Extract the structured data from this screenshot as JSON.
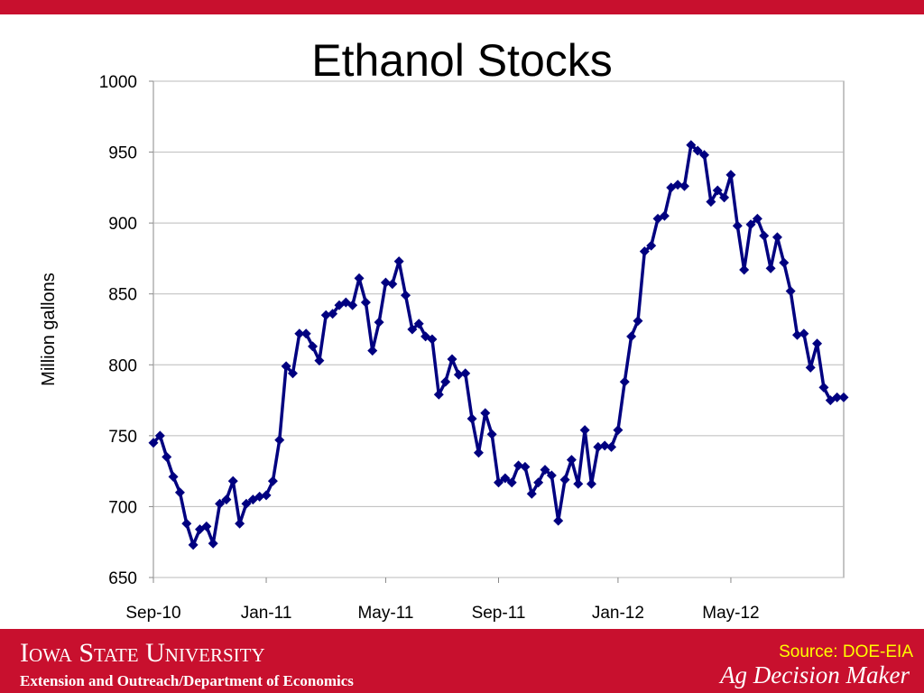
{
  "chart_data": {
    "type": "line",
    "title": "Ethanol Stocks",
    "y_label": "Million gallons",
    "categories": [
      "Sep-10",
      null,
      null,
      null,
      null,
      null,
      null,
      null,
      null,
      null,
      null,
      null,
      null,
      null,
      null,
      null,
      null,
      "Jan-11",
      null,
      null,
      null,
      null,
      null,
      null,
      null,
      null,
      null,
      null,
      null,
      null,
      null,
      null,
      null,
      null,
      null,
      "May-11",
      null,
      null,
      null,
      null,
      null,
      null,
      null,
      null,
      null,
      null,
      null,
      null,
      null,
      null,
      null,
      null,
      "Sep-11",
      null,
      null,
      null,
      null,
      null,
      null,
      null,
      null,
      null,
      null,
      null,
      null,
      null,
      null,
      null,
      null,
      null,
      "Jan-12",
      null,
      null,
      null,
      null,
      null,
      null,
      null,
      null,
      null,
      null,
      null,
      null,
      null,
      null,
      null,
      null,
      "May-12",
      null,
      null,
      null,
      null,
      null,
      null,
      null,
      null,
      null,
      null,
      null,
      null,
      null,
      null,
      null,
      null,
      null
    ],
    "values": [
      745,
      750,
      735,
      721,
      710,
      688,
      673,
      684,
      686,
      674,
      702,
      705,
      718,
      688,
      702,
      705,
      707,
      708,
      718,
      747,
      799,
      794,
      822,
      822,
      813,
      803,
      835,
      836,
      842,
      844,
      842,
      861,
      844,
      810,
      830,
      858,
      857,
      873,
      849,
      825,
      829,
      820,
      818,
      779,
      788,
      804,
      793,
      794,
      762,
      738,
      766,
      751,
      717,
      720,
      717,
      729,
      728,
      709,
      717,
      726,
      722,
      690,
      719,
      733,
      716,
      754,
      716,
      742,
      743,
      742,
      754,
      788,
      820,
      831,
      880,
      884,
      903,
      905,
      925,
      927,
      926,
      955,
      951,
      948,
      915,
      923,
      918,
      934,
      898,
      867,
      899,
      903,
      891,
      868,
      890,
      872,
      852,
      821,
      822,
      798,
      815,
      784,
      775,
      777,
      777
    ],
    "color": "#000080",
    "ylim": [
      650,
      1000
    ],
    "yticks": [
      650,
      700,
      750,
      800,
      850,
      900,
      950,
      1000
    ],
    "grid": true
  },
  "footer": {
    "university": "Iowa State University",
    "department": "Extension and Outreach/Department of Economics",
    "source": "Source: DOE-EIA",
    "brand": "Ag Decision Maker"
  }
}
